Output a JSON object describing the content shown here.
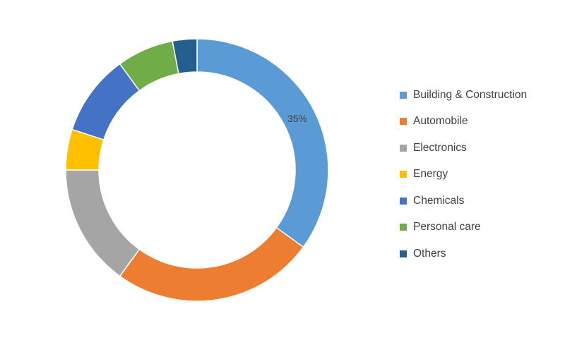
{
  "chart_data": {
    "type": "pie",
    "donut": true,
    "title": "",
    "categories": [
      "Building & Construction",
      "Automobile",
      "Electronics",
      "Energy",
      "Chemicals",
      "Personal care",
      "Others"
    ],
    "values": [
      35,
      25,
      15,
      5,
      10,
      7,
      3
    ],
    "data_labels": [
      "35%",
      "",
      "",
      "",
      "",
      "",
      ""
    ],
    "colors": [
      "#5B9BD5",
      "#ED7D31",
      "#A5A5A5",
      "#FFC000",
      "#4472C4",
      "#70AD47",
      "#255E91"
    ],
    "legend": {
      "placement": "right"
    }
  }
}
